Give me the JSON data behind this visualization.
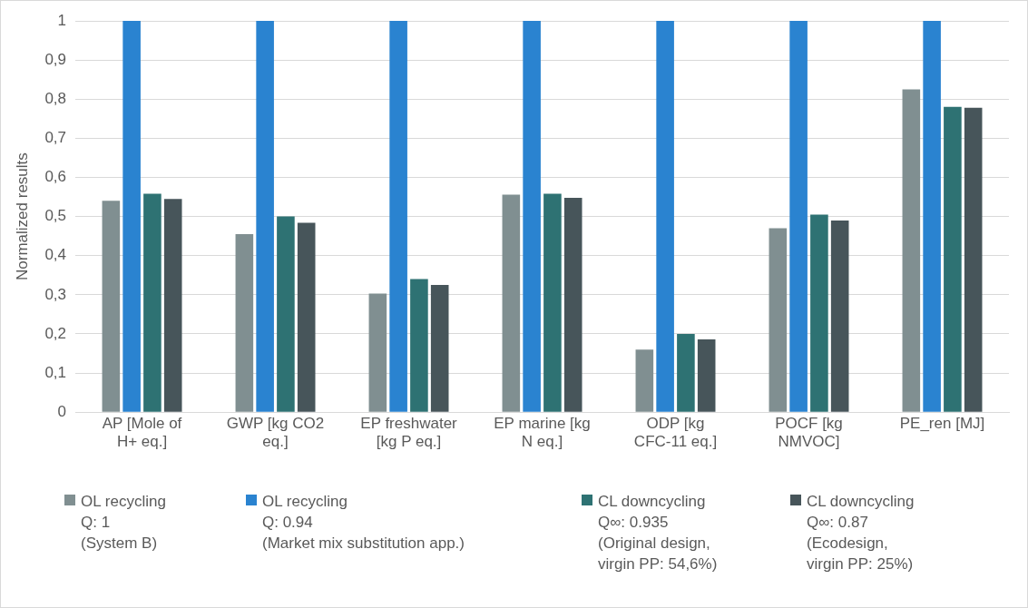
{
  "chart_data": {
    "type": "bar",
    "ylabel": "Normalized results",
    "categories": [
      "AP [Mole of H+ eq.]",
      "GWP [kg CO2 eq.]",
      "EP freshwater [kg P eq.]",
      "EP marine [kg N eq.]",
      "ODP [kg CFC-11 eq.]",
      "POCF [kg NMVOC]",
      "PE_ren [MJ]"
    ],
    "series": [
      {
        "name": "OL recycling\nQ: 1\n(System B)",
        "color": "#808f91",
        "values": [
          0.54,
          0.455,
          0.303,
          0.556,
          0.16,
          0.47,
          0.825
        ]
      },
      {
        "name": "OL recycling\nQ: 0.94\n(Market mix substitution app.)",
        "color": "#2a83d0",
        "values": [
          1,
          1,
          1,
          1,
          1,
          1,
          1
        ]
      },
      {
        "name": "CL downcycling\nQ∞: 0.935\n(Original design,\nvirgin PP: 54,6%)",
        "color": "#2e7273",
        "values": [
          0.558,
          0.5,
          0.34,
          0.558,
          0.2,
          0.505,
          0.78
        ]
      },
      {
        "name": "CL downcycling\nQ∞: 0.87\n(Ecodesign,\nvirgin PP: 25%)",
        "color": "#47555a",
        "values": [
          0.545,
          0.484,
          0.325,
          0.548,
          0.186,
          0.49,
          0.778
        ]
      }
    ],
    "ylim": [
      0,
      1
    ],
    "yticks": [
      {
        "value": 0,
        "label": "0"
      },
      {
        "value": 0.1,
        "label": "0,1"
      },
      {
        "value": 0.2,
        "label": "0,2"
      },
      {
        "value": 0.3,
        "label": "0,3"
      },
      {
        "value": 0.4,
        "label": "0,4"
      },
      {
        "value": 0.5,
        "label": "0,5"
      },
      {
        "value": 0.6,
        "label": "0,6"
      },
      {
        "value": 0.7,
        "label": "0,7"
      },
      {
        "value": 0.8,
        "label": "0,8"
      },
      {
        "value": 0.9,
        "label": "0,9"
      },
      {
        "value": 1,
        "label": "1"
      }
    ],
    "grid": "y",
    "legend": "bottom"
  }
}
